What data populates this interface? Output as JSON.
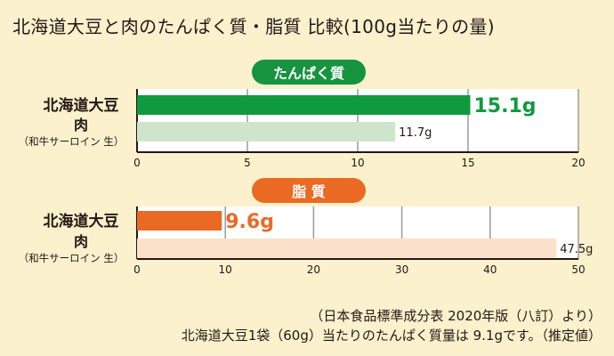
{
  "title": "北海道大豆と肉のたんぱく質・脂質 比較(100g当たりの量)",
  "footnote_source": "（日本食品標準成分表 2020年版（八訂）より）",
  "footnote_note": "北海道大豆1袋（60g）当たりのたんぱく質量は 9.1gです。（推定値）",
  "colors": {
    "protein_soy": "#0f9a3e",
    "protein_meat": "#cfe5cb",
    "fat_soy": "#ea6a24",
    "fat_meat": "#fbe1ca",
    "background": "#fbf1cc",
    "plot_bg": "#ffffff"
  },
  "chart_data": [
    {
      "type": "bar",
      "orientation": "horizontal",
      "title": "たんぱく質",
      "categories": [
        "北海道大豆",
        "肉"
      ],
      "category_sublabels": [
        "",
        "（和牛サーロイン 生）"
      ],
      "values": [
        15.1,
        11.7
      ],
      "value_labels": [
        "15.1g",
        "11.7g"
      ],
      "xlim": [
        0,
        20
      ],
      "xticks": [
        0,
        5,
        10,
        15,
        20
      ],
      "grid": true
    },
    {
      "type": "bar",
      "orientation": "horizontal",
      "title": "脂 質",
      "categories": [
        "北海道大豆",
        "肉"
      ],
      "category_sublabels": [
        "",
        "（和牛サーロイン 生）"
      ],
      "values": [
        9.6,
        47.5
      ],
      "value_labels": [
        "9.6g",
        "47.5g"
      ],
      "xlim": [
        0,
        50
      ],
      "xticks": [
        0,
        10,
        20,
        30,
        40,
        50
      ],
      "grid": true
    }
  ]
}
